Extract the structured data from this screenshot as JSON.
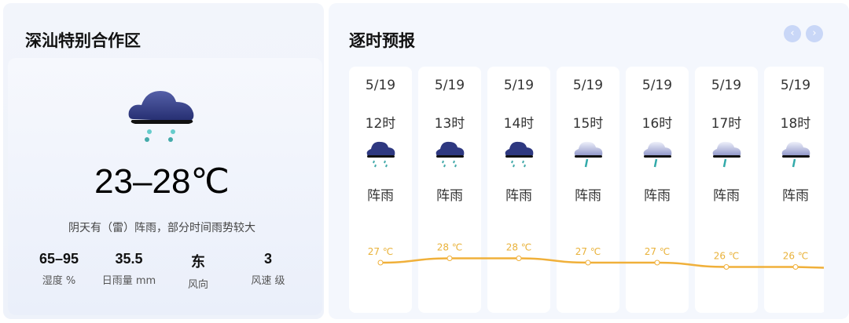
{
  "location": {
    "title": "深汕特别合作区",
    "icon": "heavy-rain-cloud-icon",
    "temperature": "23–28℃",
    "description": "阴天有（雷）阵雨，部分时间雨势较大",
    "stats": [
      {
        "value": "65–95",
        "label": "湿度 %"
      },
      {
        "value": "35.5",
        "label": "日雨量 mm"
      },
      {
        "value": "东",
        "label": "风向"
      },
      {
        "value": "3",
        "label": "风速 级"
      }
    ]
  },
  "hourly": {
    "title": "逐时预报",
    "prev": "‹",
    "next": "›",
    "line_color": "#f0b03a",
    "items": [
      {
        "date": "5/19",
        "hour": "12时",
        "weather": "阵雨",
        "icon": "dark-rain-cloud-icon",
        "temp": "27 ℃",
        "t": 27
      },
      {
        "date": "5/19",
        "hour": "13时",
        "weather": "阵雨",
        "icon": "dark-rain-cloud-icon",
        "temp": "28 ℃",
        "t": 28
      },
      {
        "date": "5/19",
        "hour": "14时",
        "weather": "阵雨",
        "icon": "dark-rain-cloud-icon",
        "temp": "28 ℃",
        "t": 28
      },
      {
        "date": "5/19",
        "hour": "15时",
        "weather": "阵雨",
        "icon": "light-rain-cloud-icon",
        "temp": "27 ℃",
        "t": 27
      },
      {
        "date": "5/19",
        "hour": "16时",
        "weather": "阵雨",
        "icon": "light-rain-cloud-icon",
        "temp": "27 ℃",
        "t": 27
      },
      {
        "date": "5/19",
        "hour": "17时",
        "weather": "阵雨",
        "icon": "light-rain-cloud-icon",
        "temp": "26 ℃",
        "t": 26
      },
      {
        "date": "5/19",
        "hour": "18时",
        "weather": "阵雨",
        "icon": "light-rain-cloud-icon",
        "temp": "26 ℃",
        "t": 26
      }
    ]
  }
}
